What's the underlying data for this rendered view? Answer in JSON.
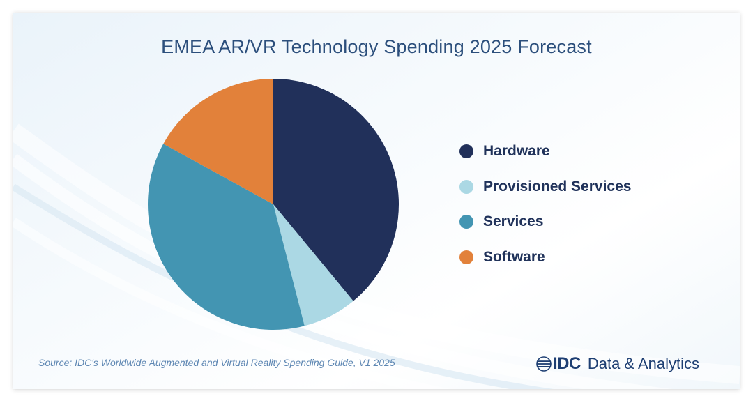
{
  "colors": {
    "hardware": "#21305a",
    "provisioned_services": "#abd8e4",
    "services": "#4395b2",
    "software": "#e2813a",
    "title": "#2c4f7c",
    "source": "#5e87b3",
    "brand": "#1e3f73"
  },
  "chart_data": {
    "type": "pie",
    "title": "EMEA AR/VR Technology Spending 2025 Forecast",
    "slices": [
      {
        "name": "Hardware",
        "value": 39,
        "color": "#21305a"
      },
      {
        "name": "Provisioned Services",
        "value": 7,
        "color": "#abd8e4"
      },
      {
        "name": "Services",
        "value": 37,
        "color": "#4395b2"
      },
      {
        "name": "Software",
        "value": 17,
        "color": "#e2813a"
      }
    ],
    "legend_position": "right",
    "start": "top",
    "direction": "clockwise"
  },
  "footer": {
    "source": "Source: IDC's Worldwide Augmented and Virtual Reality Spending Guide, V1 2025",
    "brand_logo_icon": "idc-globe-icon",
    "brand_idc": "IDC",
    "brand_rest": "Data & Analytics"
  }
}
